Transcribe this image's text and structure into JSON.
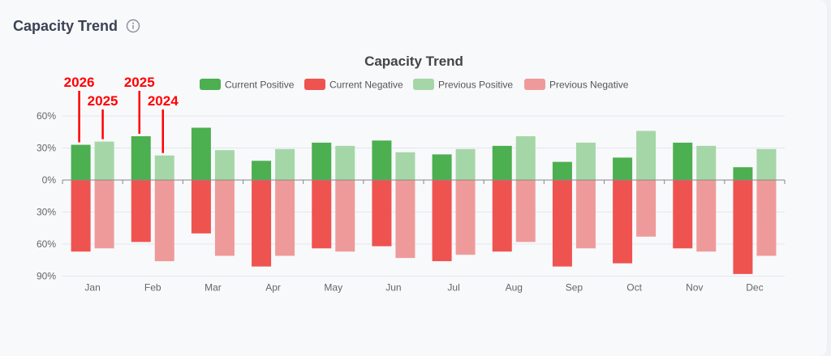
{
  "card": {
    "title": "Capacity Trend",
    "info_icon": "info-icon"
  },
  "colors": {
    "current_positive": "#4caf50",
    "current_negative": "#ef5350",
    "previous_positive": "#a5d6a7",
    "previous_negative": "#ef9a9a",
    "annotation": "#ff0000"
  },
  "chart_data": {
    "type": "bar",
    "title": "Capacity Trend",
    "xlabel": "",
    "ylabel": "",
    "ylim": [
      -90,
      60
    ],
    "yticks": [
      60,
      30,
      0,
      -30,
      -60,
      -90
    ],
    "ytick_labels": [
      "60%",
      "30%",
      "0%",
      "30%",
      "60%",
      "90%"
    ],
    "grid": true,
    "legend_position": "top-center",
    "categories": [
      "Jan",
      "Feb",
      "Mar",
      "Apr",
      "May",
      "Jun",
      "Jul",
      "Aug",
      "Sep",
      "Oct",
      "Nov",
      "Dec"
    ],
    "series": [
      {
        "name": "Current Positive",
        "group": "current",
        "values": [
          33,
          41,
          49,
          18,
          35,
          37,
          24,
          32,
          17,
          21,
          35,
          12
        ]
      },
      {
        "name": "Current Negative",
        "group": "current",
        "values": [
          -67,
          -58,
          -50,
          -81,
          -64,
          -62,
          -76,
          -67,
          -81,
          -78,
          -64,
          -88
        ]
      },
      {
        "name": "Previous Positive",
        "group": "previous",
        "values": [
          36,
          23,
          28,
          29,
          32,
          26,
          29,
          41,
          35,
          46,
          32,
          29
        ]
      },
      {
        "name": "Previous Negative",
        "group": "previous",
        "values": [
          -64,
          -76,
          -71,
          -71,
          -67,
          -73,
          -70,
          -58,
          -64,
          -53,
          -67,
          -71
        ]
      }
    ],
    "annotations": [
      {
        "text": "2026",
        "category": "Jan",
        "group": "current"
      },
      {
        "text": "2025",
        "category": "Jan",
        "group": "previous"
      },
      {
        "text": "2025",
        "category": "Feb",
        "group": "current"
      },
      {
        "text": "2024",
        "category": "Feb",
        "group": "previous"
      }
    ]
  }
}
